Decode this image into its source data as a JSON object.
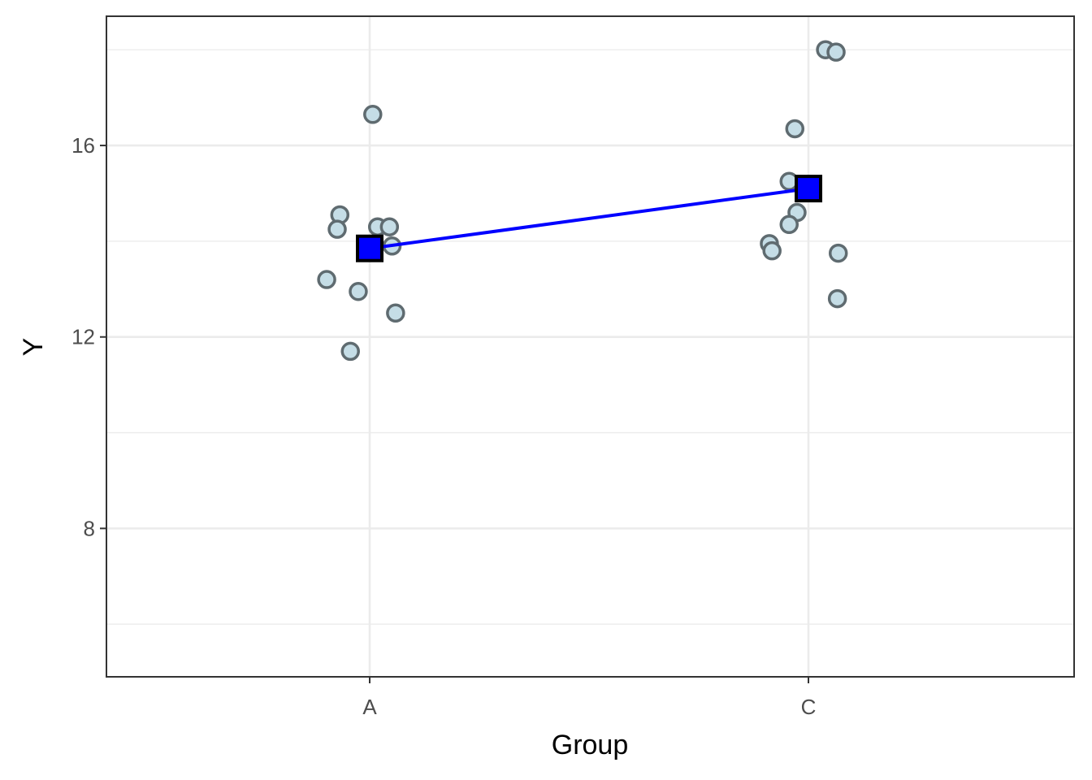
{
  "chart_data": {
    "type": "scatter",
    "xlabel": "Group",
    "ylabel": "Y",
    "categories": [
      "A",
      "C"
    ],
    "ylim": [
      4.9,
      18.7
    ],
    "y_ticks": [
      8,
      12,
      16
    ],
    "y_minor_ticks": [
      6,
      10,
      14,
      18
    ],
    "grid": true,
    "legend": "none",
    "series": [
      {
        "type": "jitter-points",
        "points": [
          {
            "group": "A",
            "offset": 0.007,
            "y": 16.65
          },
          {
            "group": "A",
            "offset": -0.068,
            "y": 14.55
          },
          {
            "group": "A",
            "offset": -0.074,
            "y": 14.25
          },
          {
            "group": "A",
            "offset": 0.018,
            "y": 14.3
          },
          {
            "group": "A",
            "offset": 0.045,
            "y": 14.3
          },
          {
            "group": "A",
            "offset": 0.051,
            "y": 13.9
          },
          {
            "group": "A",
            "offset": -0.098,
            "y": 13.2
          },
          {
            "group": "A",
            "offset": -0.026,
            "y": 12.95
          },
          {
            "group": "A",
            "offset": 0.059,
            "y": 12.5
          },
          {
            "group": "A",
            "offset": -0.044,
            "y": 11.7
          },
          {
            "group": "C",
            "offset": 0.039,
            "y": 18.0
          },
          {
            "group": "C",
            "offset": 0.063,
            "y": 17.95
          },
          {
            "group": "C",
            "offset": -0.031,
            "y": 16.35
          },
          {
            "group": "C",
            "offset": -0.044,
            "y": 15.25
          },
          {
            "group": "C",
            "offset": -0.026,
            "y": 14.6
          },
          {
            "group": "C",
            "offset": -0.044,
            "y": 14.35
          },
          {
            "group": "C",
            "offset": -0.089,
            "y": 13.95
          },
          {
            "group": "C",
            "offset": -0.083,
            "y": 13.8
          },
          {
            "group": "C",
            "offset": 0.068,
            "y": 13.75
          },
          {
            "group": "C",
            "offset": 0.066,
            "y": 12.8
          }
        ]
      },
      {
        "type": "means-line",
        "points": [
          {
            "group": "A",
            "y": 13.85
          },
          {
            "group": "C",
            "y": 15.1
          }
        ]
      }
    ],
    "colors": {
      "point_fill": "#c5dde6",
      "point_stroke": "#5f6b70",
      "mean_fill": "#0000ff",
      "mean_stroke": "#000000",
      "line": "#0000ff",
      "grid": "#ebebeb",
      "panel_border": "#333333"
    }
  }
}
